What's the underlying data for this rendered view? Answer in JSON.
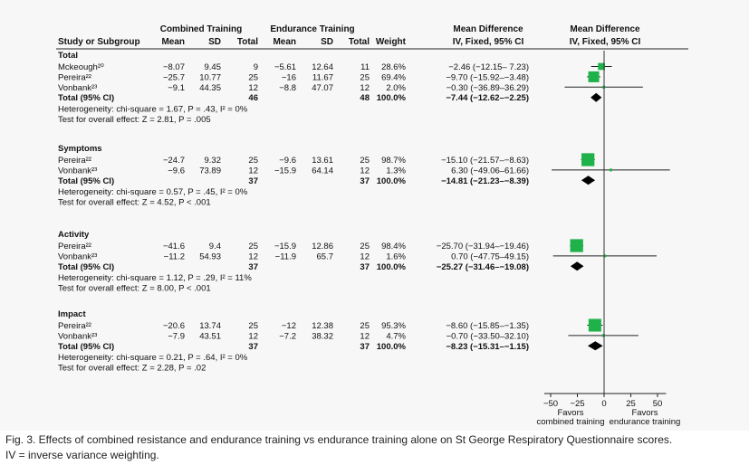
{
  "headers": {
    "combined": "Combined Training",
    "endurance": "Endurance Training",
    "md1": "Mean Difference",
    "md2": "Mean Difference",
    "study": "Study or Subgroup",
    "mean": "Mean",
    "sd": "SD",
    "total": "Total",
    "weight": "Weight",
    "method1": "IV, Fixed, 95% CI",
    "method2": "IV, Fixed, 95% CI"
  },
  "chart_data": {
    "type": "forest",
    "x_axis": {
      "ticks": [
        -50,
        -25,
        0,
        25,
        50
      ],
      "tick_labels": [
        "−50",
        "−25",
        "0",
        "25",
        "50"
      ],
      "xlim": [
        -56,
        58
      ]
    },
    "favors_left": [
      "Favors",
      "combined training"
    ],
    "favors_right": [
      "Favors",
      "endurance training"
    ],
    "groups": [
      {
        "name": "Total",
        "studies": [
          {
            "label": "Mckeough²⁰",
            "c_mean": "−8.07",
            "c_sd": "9.45",
            "c_n": "9",
            "e_mean": "−5.61",
            "e_sd": "12.64",
            "e_n": "11",
            "weight": "28.6%",
            "ci_text": "−2.46 (−12.15– 7.23)",
            "md": -2.46,
            "lo": -12.15,
            "hi": 7.23,
            "w": 28.6
          },
          {
            "label": "Pereira²²",
            "c_mean": "−25.7",
            "c_sd": "10.77",
            "c_n": "25",
            "e_mean": "−16",
            "e_sd": "11.67",
            "e_n": "25",
            "weight": "69.4%",
            "ci_text": "−9.70 (−15.92–−3.48)",
            "md": -9.7,
            "lo": -15.92,
            "hi": -3.48,
            "w": 69.4
          },
          {
            "label": "Vonbank²³",
            "c_mean": "−9.1",
            "c_sd": "44.35",
            "c_n": "12",
            "e_mean": "−8.8",
            "e_sd": "47.07",
            "e_n": "12",
            "weight": "2.0%",
            "ci_text": "−0.30 (−36.89–36.29)",
            "md": -0.3,
            "lo": -36.89,
            "hi": 36.29,
            "w": 2.0
          }
        ],
        "total": {
          "label": "Total (95% CI)",
          "c_n": "46",
          "e_n": "48",
          "weight": "100.0%",
          "ci_text": "−7.44 (−12.62–−2.25)",
          "md": -7.44,
          "lo": -12.62,
          "hi": -2.25
        },
        "het_text": "Heterogeneity: chi-square = 1.67, P = .43, I² = 0%",
        "test_text": "Test for overall effect: Z = 2.81, P = .005"
      },
      {
        "name": "Symptoms",
        "studies": [
          {
            "label": "Pereira²²",
            "c_mean": "−24.7",
            "c_sd": "9.32",
            "c_n": "25",
            "e_mean": "−9.6",
            "e_sd": "13.61",
            "e_n": "25",
            "weight": "98.7%",
            "ci_text": "−15.10 (−21.57–−8.63)",
            "md": -15.1,
            "lo": -21.57,
            "hi": -8.63,
            "w": 98.7
          },
          {
            "label": "Vonbank²³",
            "c_mean": "−9.6",
            "c_sd": "73.89",
            "c_n": "12",
            "e_mean": "−15.9",
            "e_sd": "64.14",
            "e_n": "12",
            "weight": "1.3%",
            "ci_text": "6.30 (−49.06–61.66)",
            "md": 6.3,
            "lo": -49.06,
            "hi": 61.66,
            "w": 1.3
          }
        ],
        "total": {
          "label": "Total (95% CI)",
          "c_n": "37",
          "e_n": "37",
          "weight": "100.0%",
          "ci_text": "−14.81 (−21.23–−8.39)",
          "md": -14.81,
          "lo": -21.23,
          "hi": -8.39
        },
        "het_text": "Heterogeneity: chi-square = 0.57, P = .45, I² = 0%",
        "test_text": "Test for overall effect: Z = 4.52, P < .001"
      },
      {
        "name": "Activity",
        "studies": [
          {
            "label": "Pereira²²",
            "c_mean": "−41.6",
            "c_sd": "9.4",
            "c_n": "25",
            "e_mean": "−15.9",
            "e_sd": "12.86",
            "e_n": "25",
            "weight": "98.4%",
            "ci_text": "−25.70 (−31.94–−19.46)",
            "md": -25.7,
            "lo": -31.94,
            "hi": -19.46,
            "w": 98.4
          },
          {
            "label": "Vonbank²³",
            "c_mean": "−11.2",
            "c_sd": "54.93",
            "c_n": "12",
            "e_mean": "−11.9",
            "e_sd": "65.7",
            "e_n": "12",
            "weight": "1.6%",
            "ci_text": "0.70 (−47.75–49.15)",
            "md": 0.7,
            "lo": -47.75,
            "hi": 49.15,
            "w": 1.6
          }
        ],
        "total": {
          "label": "Total (95% CI)",
          "c_n": "37",
          "e_n": "37",
          "weight": "100.0%",
          "ci_text": "−25.27 (−31.46–−19.08)",
          "md": -25.27,
          "lo": -31.46,
          "hi": -19.08
        },
        "het_text": "Heterogeneity: chi-square = 1.12, P = .29, I² = 11%",
        "test_text": "Test for overall effect: Z = 8.00, P < .001"
      },
      {
        "name": "Impact",
        "studies": [
          {
            "label": "Pereira²²",
            "c_mean": "−20.6",
            "c_sd": "13.74",
            "c_n": "25",
            "e_mean": "−12",
            "e_sd": "12.38",
            "e_n": "25",
            "weight": "95.3%",
            "ci_text": "−8.60 (−15.85–−1.35)",
            "md": -8.6,
            "lo": -15.85,
            "hi": -1.35,
            "w": 95.3
          },
          {
            "label": "Vonbank²³",
            "c_mean": "−7.9",
            "c_sd": "43.51",
            "c_n": "12",
            "e_mean": "−7.2",
            "e_sd": "38.32",
            "e_n": "12",
            "weight": "4.7%",
            "ci_text": "−0.70 (−33.50–32.10)",
            "md": -0.7,
            "lo": -33.5,
            "hi": 32.1,
            "w": 4.7
          }
        ],
        "total": {
          "label": "Total (95% CI)",
          "c_n": "37",
          "e_n": "37",
          "weight": "100.0%",
          "ci_text": "−8.23 (−15.31–−1.15)",
          "md": -8.23,
          "lo": -15.31,
          "hi": -1.15
        },
        "het_text": "Heterogeneity: chi-square = 0.21, P = .64, I² = 0%",
        "test_text": "Test for overall effect: Z = 2.28, P = .02"
      }
    ],
    "colors": {
      "square": "#1fb24a",
      "diamond": "#000000",
      "line": "#222222"
    }
  },
  "caption": {
    "line1": "Fig. 3. Effects of combined resistance and endurance training vs endurance training alone on St George Respiratory Questionnaire scores.",
    "line2": "IV = inverse variance weighting."
  }
}
